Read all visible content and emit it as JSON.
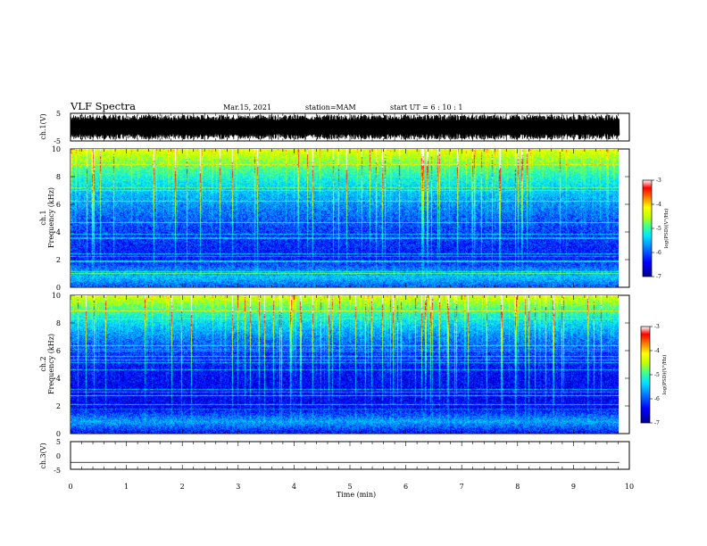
{
  "header": {
    "title": "VLF Spectra",
    "date": "Mar.15, 2021",
    "station": "station=MAM",
    "start": "start  UT =   6  : 10 : 1"
  },
  "colors": {
    "colormap": [
      "#00008b",
      "#0000ff",
      "#0080ff",
      "#00e5ff",
      "#40ff90",
      "#c0ff00",
      "#ffff00",
      "#ff8000",
      "#ff0000",
      "#ffffff"
    ],
    "trace": "#000000"
  },
  "chart_data": [
    {
      "type": "line",
      "panel": "ch1-waveform",
      "ylabel": "ch.1(V)",
      "ylim": [
        -5,
        5
      ],
      "yticks": [
        "5",
        "-5"
      ],
      "description_of_values": "dense oscillating waveform, amplitude about ±4.5 V",
      "amplitude": 4.5
    },
    {
      "type": "heatmap",
      "panel": "ch1-spectrogram",
      "ylabel": "ch.1\nFrequency (kHz)",
      "ylabel_line1": "ch.1",
      "ylabel_line2": "Frequency (kHz)",
      "ylim": [
        0,
        10
      ],
      "yticks": [
        "0",
        "2",
        "4",
        "6",
        "8",
        "10"
      ],
      "colorbar": {
        "label": "log(PSD)(V²/Hz)",
        "range": [
          -7,
          -3
        ],
        "ticks": [
          "-3",
          "-4",
          "-5",
          "-6",
          "-7"
        ]
      }
    },
    {
      "type": "heatmap",
      "panel": "ch2-spectrogram",
      "ylabel_line1": "ch.2",
      "ylabel_line2": "Frequency (kHz)",
      "ylim": [
        0,
        10
      ],
      "yticks": [
        "0",
        "2",
        "4",
        "6",
        "8",
        "10"
      ],
      "colorbar": {
        "label": "log(PSD)(V²/Hz)",
        "range": [
          -7,
          -3
        ],
        "ticks": [
          "-3",
          "-4",
          "-5",
          "-6",
          "-7"
        ]
      }
    },
    {
      "type": "line",
      "panel": "ch3-waveform",
      "ylabel": "ch.3(V)",
      "ylim": [
        -5,
        5
      ],
      "yticks": [
        "5",
        "0",
        "-5"
      ],
      "constant_value": -2.5
    }
  ],
  "xaxis": {
    "label": "Time (min)",
    "range": [
      0,
      10
    ],
    "ticks": [
      "0",
      "1",
      "2",
      "3",
      "4",
      "5",
      "6",
      "7",
      "8",
      "9",
      "10"
    ],
    "data_end": 9.82
  }
}
